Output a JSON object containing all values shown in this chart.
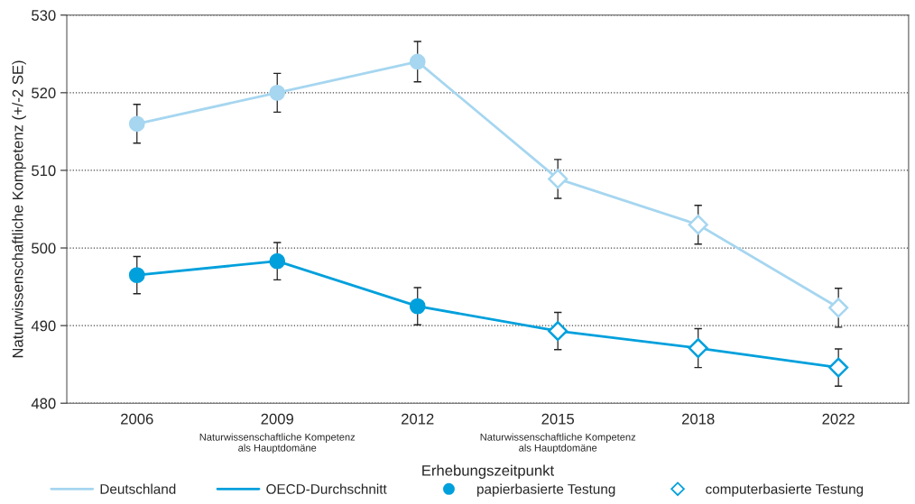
{
  "chart_data": {
    "type": "line",
    "xlabel": "Erhebungszeitpunkt",
    "ylabel": "Naturwissenschaftliche Kompetenz (+/-2 SE)",
    "categories": [
      "2006",
      "2009",
      "2012",
      "2015",
      "2018",
      "2022"
    ],
    "series": [
      {
        "name": "Deutschland",
        "color": "#a6d6f0",
        "values": [
          516,
          520,
          524,
          508.9,
          503,
          492.3
        ],
        "errors": [
          2.5,
          2.5,
          2.6,
          2.5,
          2.5,
          2.5
        ],
        "marker": "none"
      },
      {
        "name": "OECD-Durchschnitt",
        "color": "#00a0dc",
        "values": [
          496.5,
          498.3,
          492.5,
          489.3,
          487.1,
          484.6
        ],
        "errors": [
          2.4,
          2.4,
          2.4,
          2.4,
          2.5,
          2.4
        ],
        "marker": "none"
      },
      {
        "type": "scatter",
        "marker": "circle",
        "color": "#a6d6f0",
        "values": [
          516,
          520,
          524,
          null,
          null,
          null
        ]
      },
      {
        "name": "papierbasierte Testung",
        "type": "scatter",
        "marker": "circle",
        "color": "#00a0dc",
        "values": [
          496.5,
          498.3,
          492.5,
          null,
          null,
          null
        ]
      },
      {
        "type": "scatter",
        "marker": "diamond",
        "color": "#a6d6f0",
        "values": [
          null,
          null,
          null,
          508.9,
          503,
          492.3
        ]
      },
      {
        "name": "computerbasierte Testung",
        "type": "scatter",
        "marker": "diamond",
        "color": "#00a0dc",
        "values": [
          null,
          null,
          null,
          489.3,
          487.1,
          484.6
        ]
      }
    ],
    "annotations": [
      "Naturwissenschaftliche Kompetenz\nals Hauptdomäne",
      "Naturwissenschaftliche Kompetenz\nals Hauptdomäne"
    ],
    "ylim": [
      480,
      530
    ],
    "yticks": [
      480,
      490,
      500,
      510,
      520,
      530
    ],
    "grid": "y",
    "legend": "bottom",
    "line_style": "solid"
  }
}
